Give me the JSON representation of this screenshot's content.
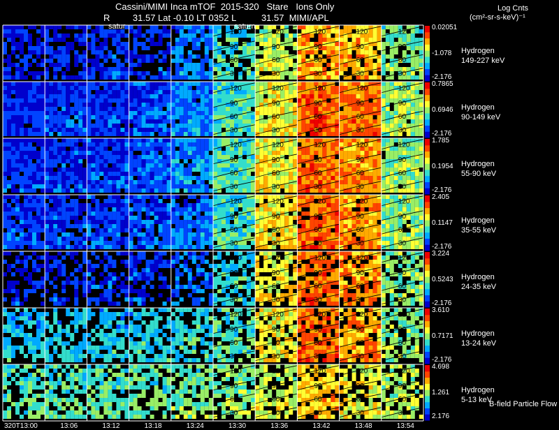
{
  "header": {
    "title": "Cassini/MIMI Inca mTOF  2015-320   Stare   Ions Only",
    "subtitle_left": "R         31.57 Lat -0.10 LT 0352 L          31.57  MIMI/APL",
    "saturn_tag_1": "satur",
    "saturn_tag_2": "saturn",
    "units_title": "Log Cnts",
    "units": "(cm²-sr-s-keV)⁻¹"
  },
  "footer": {
    "bfield_label": "B-field Particle Flow"
  },
  "chart_data": {
    "type": "heatmap",
    "time_ticks": [
      "320T13:00",
      "13:06",
      "13:12",
      "13:18",
      "13:24",
      "13:30",
      "13:36",
      "13:42",
      "13:48",
      "13:54"
    ],
    "contour_labels": [
      "120",
      "90",
      "60",
      "30"
    ],
    "colormap": [
      "#0000cc",
      "#0044ff",
      "#00aaff",
      "#33ddcc",
      "#99ee66",
      "#ffff33",
      "#ffaa00",
      "#ff4400",
      "#ee0000"
    ],
    "rows": [
      {
        "species": "Hydrogen",
        "energy": "149-227 keV",
        "max": "0.02051",
        "mid": "-1.078",
        "min": "-2.176",
        "intensity": [
          0.08,
          0.1,
          0.12,
          0.12,
          0.22,
          0.38,
          0.55,
          0.72,
          0.7,
          0.45
        ],
        "sparsity": 0.35
      },
      {
        "species": "Hydrogen",
        "energy": "90-149 keV",
        "max": "0.7865",
        "mid": "0.6946",
        "min": "-2.176",
        "intensity": [
          0.1,
          0.12,
          0.13,
          0.15,
          0.22,
          0.4,
          0.6,
          0.82,
          0.78,
          0.52
        ],
        "sparsity": 0.05
      },
      {
        "species": "Hydrogen",
        "energy": "55-90 keV",
        "max": "1.785",
        "mid": "0.1954",
        "min": "-2.176",
        "intensity": [
          0.12,
          0.14,
          0.15,
          0.17,
          0.25,
          0.42,
          0.62,
          0.8,
          0.76,
          0.5
        ],
        "sparsity": 0.05
      },
      {
        "species": "Hydrogen",
        "energy": "35-55 keV",
        "max": "2.405",
        "mid": "0.1147",
        "min": "-2.176",
        "intensity": [
          0.13,
          0.14,
          0.15,
          0.16,
          0.22,
          0.4,
          0.64,
          0.8,
          0.74,
          0.5
        ],
        "sparsity": 0.15
      },
      {
        "species": "Hydrogen",
        "energy": "24-35 keV",
        "max": "3.224",
        "mid": "0.5243",
        "min": "-2.176",
        "intensity": [
          0.12,
          0.12,
          0.13,
          0.14,
          0.2,
          0.36,
          0.62,
          0.8,
          0.74,
          0.48
        ],
        "sparsity": 0.5
      },
      {
        "species": "Hydrogen",
        "energy": "13-24 keV",
        "max": "3.610",
        "mid": "0.7171",
        "min": "-2.176",
        "intensity": [
          0.32,
          0.32,
          0.33,
          0.34,
          0.36,
          0.42,
          0.62,
          0.8,
          0.72,
          0.48
        ],
        "sparsity": 0.5
      },
      {
        "species": "Hydrogen",
        "energy": "5-13 keV",
        "max": "4.698",
        "mid": "1.261",
        "min": "2.176",
        "intensity": [
          0.42,
          0.42,
          0.43,
          0.44,
          0.46,
          0.48,
          0.55,
          0.68,
          0.6,
          0.52
        ],
        "sparsity": 0.5
      }
    ]
  }
}
